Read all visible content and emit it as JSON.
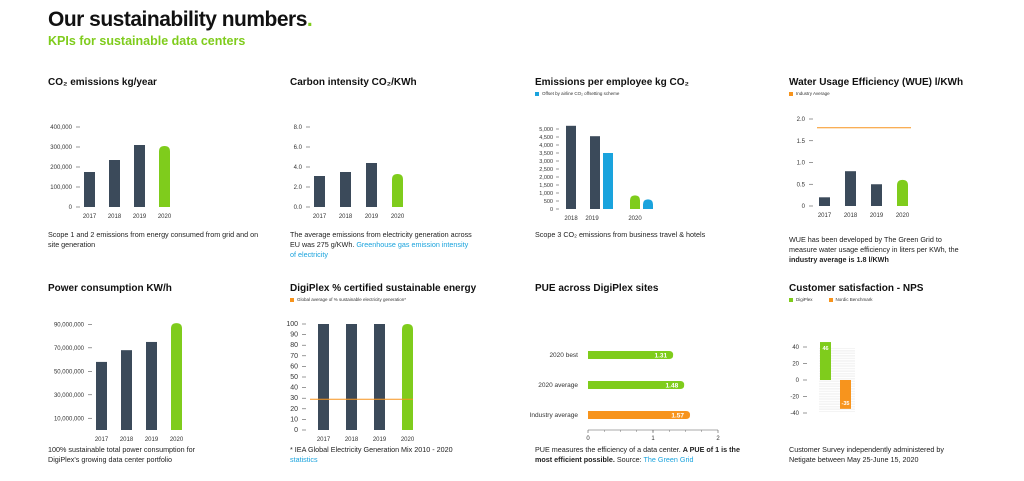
{
  "page": {
    "title": "Our sustainability numbers",
    "title_dot": ".",
    "subtitle": "KPIs for sustainable data centers"
  },
  "colors": {
    "dark": "#3b4a5a",
    "green": "#7fcc1c",
    "blue": "#1aa3dd",
    "orange": "#f7941d",
    "axis": "#555555"
  },
  "panels": {
    "co2": {
      "title": "CO₂ emissions kg/year",
      "note": "Scope 1 and 2 emissions from energy consumed from grid and on site generation"
    },
    "carbon": {
      "title": "Carbon intensity CO₂/KWh",
      "note": "The average emissions from electricity generation across EU was 275 g/KWh. ",
      "note_link": "Greenhouse gas emission intensity of electricity"
    },
    "employee": {
      "title": "Emissions per employee kg CO₂",
      "legend": "Offset by airline CO₂ offsetting scheme",
      "note": "Scope 3 CO₂ emissions from business travel & hotels"
    },
    "wue": {
      "title": "Water Usage Efficiency (WUE) l/KWh",
      "legend": "Industry Average",
      "note": "WUE has been developed by The Green Grid to measure water usage efficiency in liters per KWh, the ",
      "note_bold": "industry average is 1.8 l/KWh"
    },
    "power": {
      "title": "Power consumption KW/h",
      "note": "100% sustainable total power consumption for DigiPlex's growing data center portfolio"
    },
    "certified": {
      "title": "DigiPlex % certified sustainable energy",
      "legend": "Global average of % sustainable electricity generation*",
      "note": "* IEA Global Electricity Generation Mix 2010 - 2020",
      "note_link": "statistics"
    },
    "pue": {
      "title": "PUE across DigiPlex sites",
      "note": "PUE measures the efficiency of a data center. ",
      "note_bold": "A PUE of 1 is the most efficient possible.",
      "note_after": " Source: ",
      "note_link": "The Green Grid"
    },
    "nps": {
      "title": "Customer satisfaction - NPS",
      "legend_a": "DigiPlex",
      "legend_b": "Nordic Benchmark",
      "note": "Customer Survey independently administered by Netigate between May 25-June 15, 2020"
    }
  },
  "chart_data": [
    {
      "id": "co2",
      "type": "bar",
      "categories": [
        "2017",
        "2018",
        "2019",
        "2020"
      ],
      "values": [
        175000,
        235000,
        310000,
        305000
      ],
      "ylim": [
        0,
        400000
      ],
      "yticks": [
        "0",
        "100,000",
        "200,000",
        "300,000",
        "400,000"
      ],
      "highlight_last": "green"
    },
    {
      "id": "carbon",
      "type": "bar",
      "categories": [
        "2017",
        "2018",
        "2019",
        "2020"
      ],
      "values": [
        3.1,
        3.5,
        4.4,
        3.3
      ],
      "ylim": [
        0,
        8
      ],
      "yticks": [
        "0.0",
        "2.0",
        "4.0",
        "6.0",
        "8.0"
      ],
      "highlight_last": "green"
    },
    {
      "id": "employee",
      "type": "bar",
      "categories": [
        "2018",
        "2019",
        "2020"
      ],
      "series": [
        {
          "name": "",
          "values": [
            5200,
            4550,
            850
          ],
          "color": "dark_green_last"
        },
        {
          "name": "Offset by airline CO₂ offsetting scheme",
          "values": [
            0,
            3500,
            600
          ],
          "color": "blue"
        }
      ],
      "ylim": [
        0,
        5500
      ],
      "yticks": [
        "0",
        "500",
        "1,000",
        "1,500",
        "2,000",
        "2,500",
        "3,000",
        "3,500",
        "4,000",
        "4,500",
        "5,000"
      ]
    },
    {
      "id": "wue",
      "type": "bar",
      "categories": [
        "2017",
        "2018",
        "2019",
        "2020"
      ],
      "values": [
        0.2,
        0.8,
        0.5,
        0.6
      ],
      "reference": {
        "name": "Industry Average",
        "value": 1.8
      },
      "ylim": [
        0,
        2
      ],
      "yticks": [
        "0",
        "0.5",
        "1.0",
        "1.5",
        "2.0"
      ],
      "highlight_last": "green"
    },
    {
      "id": "power",
      "type": "bar",
      "categories": [
        "2017",
        "2018",
        "2019",
        "2020"
      ],
      "values": [
        58000000,
        68000000,
        75000000,
        91000000
      ],
      "ylim": [
        0,
        92000000
      ],
      "yticks": [
        "10,000,000",
        "30,000,000",
        "50,000,000",
        "70,000,000",
        "90,000,000"
      ],
      "ytick_values": [
        10000000,
        30000000,
        50000000,
        70000000,
        90000000
      ],
      "highlight_last": "green"
    },
    {
      "id": "certified",
      "type": "bar",
      "categories": [
        "2017",
        "2018",
        "2019",
        "2020"
      ],
      "values": [
        100,
        100,
        100,
        100
      ],
      "reference": {
        "name": "Global average of % sustainable electricity generation*",
        "value": 29
      },
      "ylim": [
        0,
        100
      ],
      "yticks": [
        "0",
        "10",
        "20",
        "30",
        "40",
        "50",
        "60",
        "70",
        "80",
        "90",
        "100"
      ],
      "highlight_last": "green"
    },
    {
      "id": "pue",
      "type": "bar",
      "orientation": "horizontal",
      "categories": [
        "2020 best",
        "2020 average",
        "Industry average"
      ],
      "values": [
        1.31,
        1.48,
        1.57
      ],
      "labels": [
        "1.31",
        "1.48",
        "1.57"
      ],
      "xlim": [
        0,
        2
      ],
      "xticks": [
        "0",
        "1",
        "2"
      ]
    },
    {
      "id": "nps",
      "type": "bar",
      "series": [
        {
          "name": "DigiPlex",
          "values": [
            46
          ],
          "labels": [
            "46"
          ]
        },
        {
          "name": "Nordic Benchmark",
          "values": [
            -35
          ],
          "labels": [
            "-35"
          ]
        }
      ],
      "ylim": [
        -40,
        40
      ],
      "yticks": [
        "-40",
        "-20",
        "0",
        "20",
        "40"
      ]
    }
  ]
}
